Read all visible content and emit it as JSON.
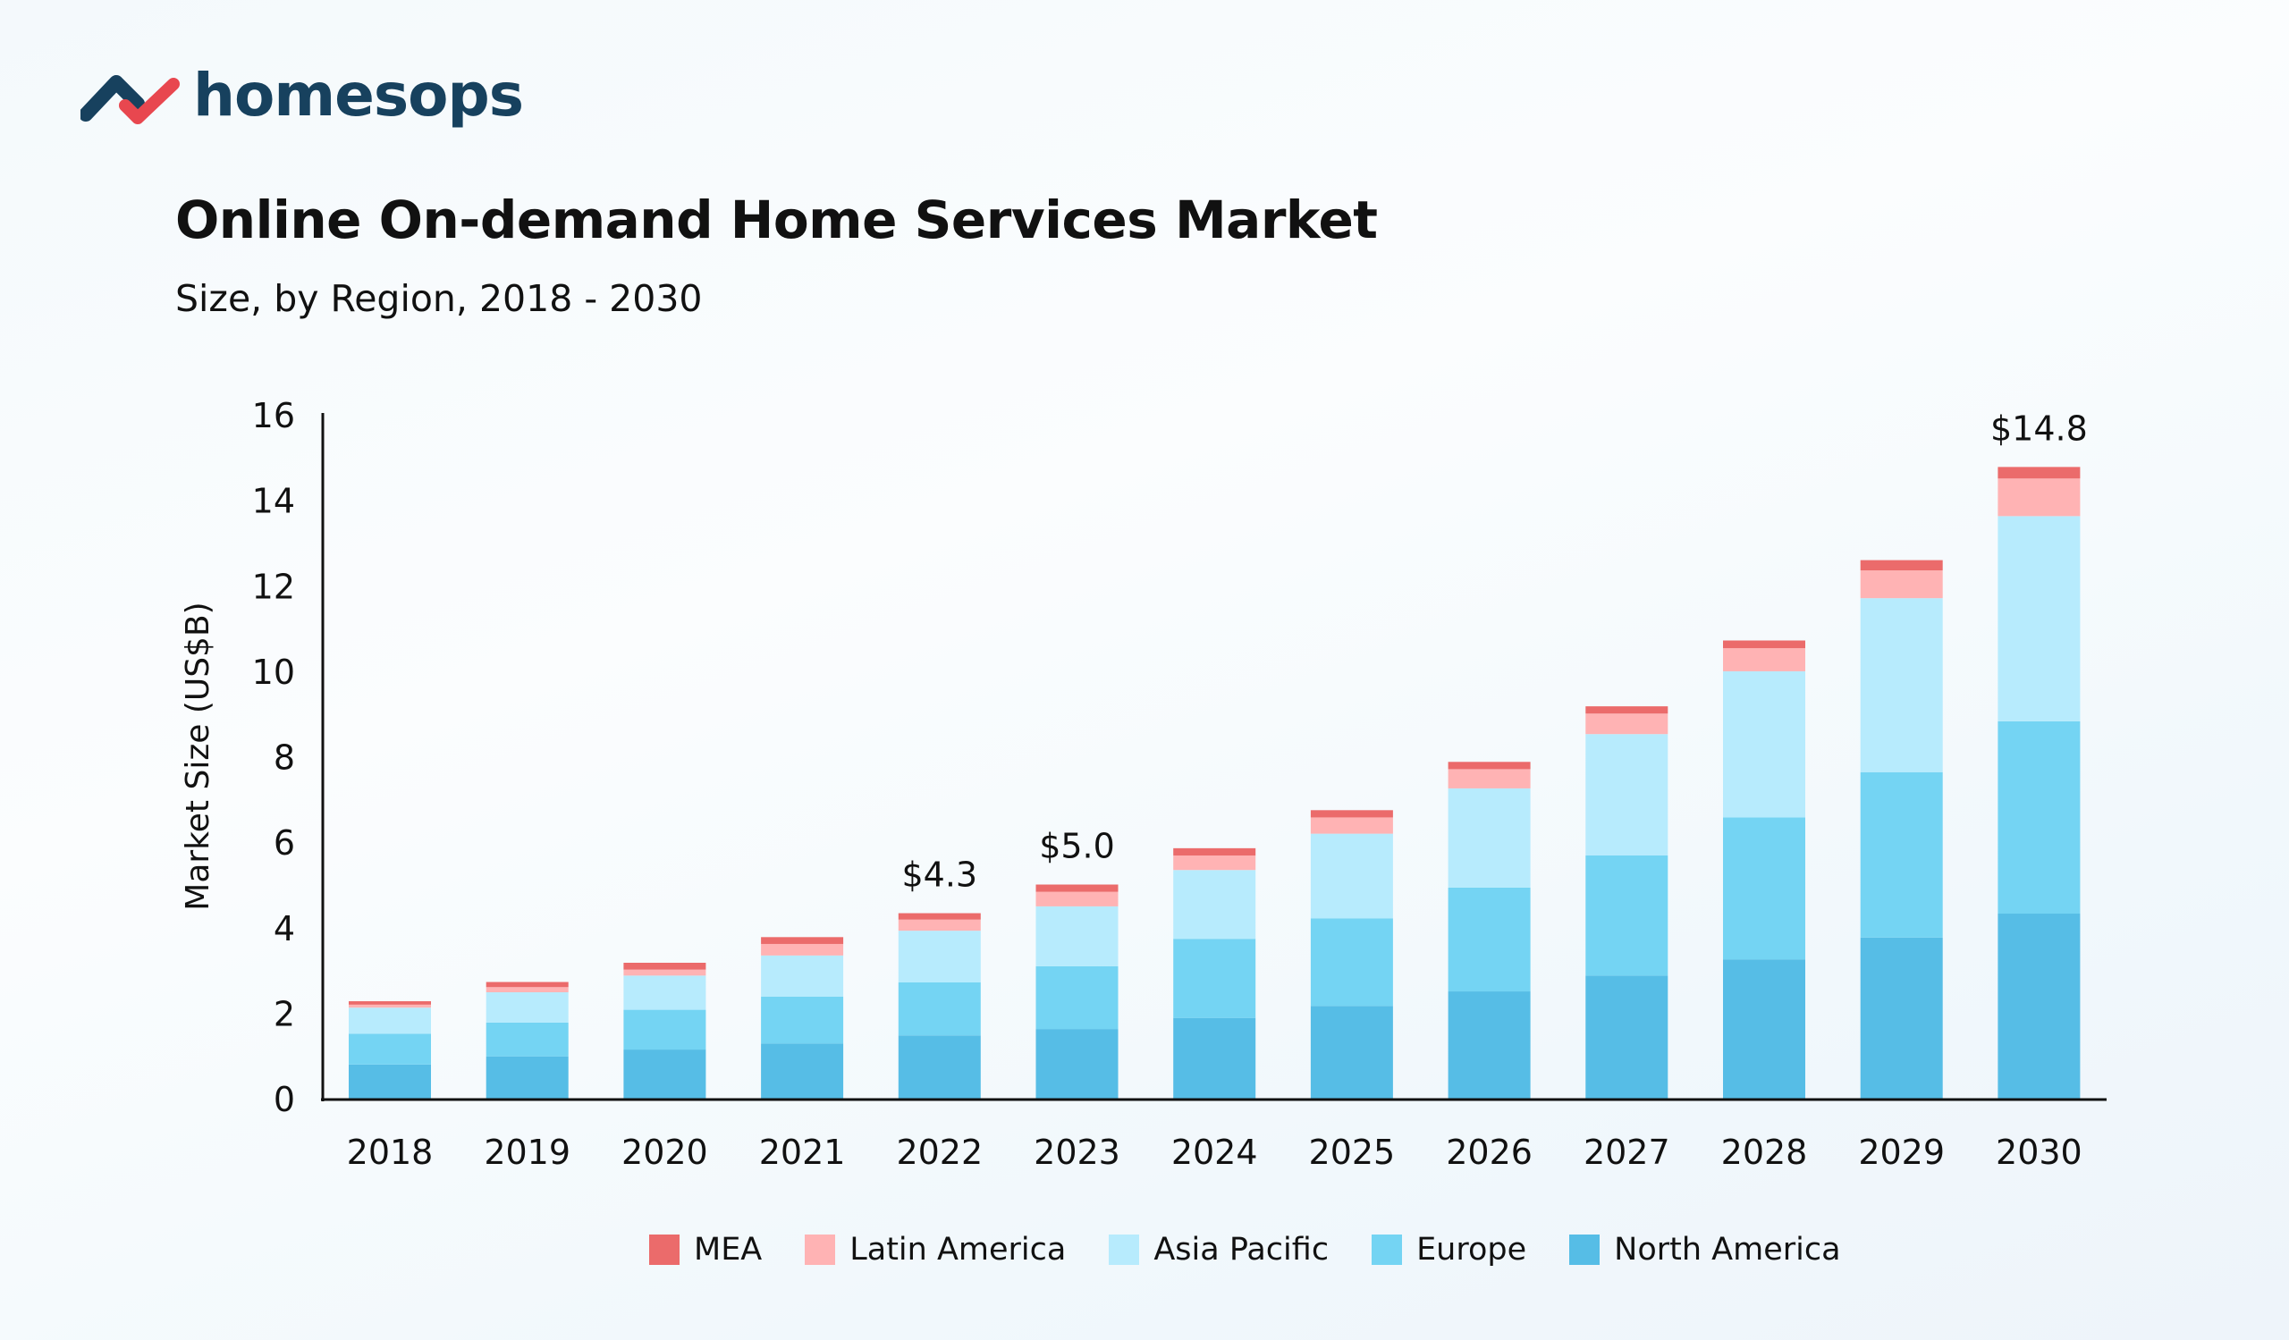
{
  "brand": {
    "name": "homesops"
  },
  "header": {
    "title": "Online On-demand Home Services Market",
    "subtitle": "Size, by Region, 2018 - 2030"
  },
  "chart_data": {
    "type": "bar",
    "stacked": true,
    "title": "Online On-demand Home Services Market",
    "subtitle": "Size, by Region, 2018 - 2030",
    "xlabel": "",
    "ylabel": "Market Size (US$B)",
    "ylim": [
      0,
      16
    ],
    "yticks": [
      "0",
      "2",
      "4",
      "6",
      "8",
      "10",
      "12",
      "14",
      "16"
    ],
    "grid": false,
    "legend_position": "bottom",
    "categories": [
      "2018",
      "2019",
      "2020",
      "2021",
      "2022",
      "2023",
      "2024",
      "2025",
      "2026",
      "2027",
      "2028",
      "2029",
      "2030"
    ],
    "series": [
      {
        "name": "North America",
        "color": "#56bde6",
        "values": [
          0.82,
          1.01,
          1.17,
          1.31,
          1.5,
          1.65,
          1.91,
          2.19,
          2.53,
          2.9,
          3.28,
          3.79,
          4.35
        ]
      },
      {
        "name": "Europe",
        "color": "#74d4f3",
        "values": [
          0.72,
          0.79,
          0.93,
          1.1,
          1.24,
          1.47,
          1.85,
          2.05,
          2.43,
          2.81,
          3.32,
          3.87,
          4.5
        ]
      },
      {
        "name": "Asia Pacific",
        "color": "#b7ebfd",
        "values": [
          0.61,
          0.71,
          0.8,
          0.96,
          1.21,
          1.4,
          1.61,
          1.98,
          2.32,
          2.84,
          3.42,
          4.07,
          4.8
        ]
      },
      {
        "name": "Latin America",
        "color": "#ffb3b4",
        "values": [
          0.07,
          0.12,
          0.14,
          0.27,
          0.26,
          0.34,
          0.34,
          0.38,
          0.45,
          0.48,
          0.54,
          0.65,
          0.88
        ]
      },
      {
        "name": "MEA",
        "color": "#eb6b6b",
        "values": [
          0.08,
          0.12,
          0.16,
          0.16,
          0.15,
          0.17,
          0.17,
          0.17,
          0.17,
          0.17,
          0.18,
          0.24,
          0.27
        ]
      }
    ],
    "data_labels": [
      {
        "category": "2022",
        "text": "$4.3"
      },
      {
        "category": "2023",
        "text": "$5.0"
      },
      {
        "category": "2030",
        "text": "$14.8"
      }
    ],
    "legend_order": [
      "MEA",
      "Latin America",
      "Asia Pacific",
      "Europe",
      "North America"
    ]
  }
}
